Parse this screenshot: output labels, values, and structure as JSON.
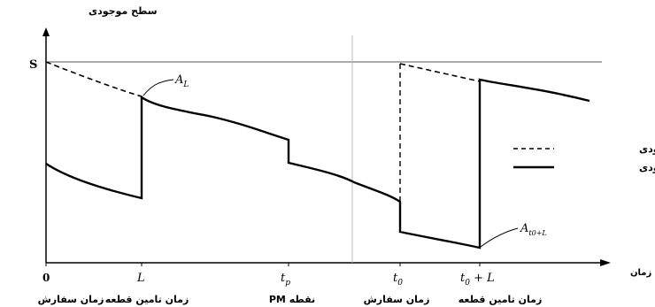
{
  "chart_data": {
    "type": "line",
    "ylabel": "سطح موجودی",
    "xlabel": "زمان",
    "y_tick": "S",
    "x_ticks": [
      {
        "label": "0",
        "italic": false,
        "sub": ""
      },
      {
        "label": "L",
        "italic": true,
        "sub": ""
      },
      {
        "label": "t",
        "italic": true,
        "sub": "p"
      },
      {
        "label": "t",
        "italic": true,
        "sub": "0"
      },
      {
        "label": "t",
        "italic": true,
        "sub": "0",
        "suffix": " + L"
      }
    ],
    "x_captions": [
      {
        "text": "زمان سفارش"
      },
      {
        "text": "زمان تامین قطعه"
      },
      {
        "text": "نقطه PM"
      },
      {
        "text": "زمان سفارش"
      },
      {
        "text": "زمان تامین قطعه"
      }
    ],
    "legend": [
      {
        "name": "موقعیت موجودی",
        "style": "dashed"
      },
      {
        "name": "سطح موجودی",
        "style": "solid"
      }
    ],
    "annotations": [
      {
        "text": "A",
        "sub": "L"
      },
      {
        "text": "A",
        "sub": "t0+L"
      }
    ],
    "series": [
      {
        "name": "موقعیت موجودی",
        "style": "dashed",
        "x": [
          0,
          1,
          2,
          3,
          4,
          5,
          6
        ],
        "y": [
          0.0,
          0.0,
          0.0,
          0.0,
          0.0,
          0.0,
          0.0
        ],
        "points": [
          [
            0,
            0.9
          ],
          [
            0.2,
            0.87
          ],
          [
            0.4,
            0.84
          ],
          [
            0.6,
            0.81
          ],
          [
            0.8,
            0.78
          ],
          [
            1.0,
            0.75
          ]
        ],
        "points2": [
          [
            3.6,
            0.9
          ],
          [
            3.9,
            0.88
          ],
          [
            4.2,
            0.86
          ],
          [
            4.45,
            0.84
          ]
        ]
      },
      {
        "name": "سطح موجودی",
        "style": "solid",
        "points": [
          [
            0,
            0.45
          ],
          [
            0.2,
            0.4
          ],
          [
            0.5,
            0.34
          ],
          [
            0.8,
            0.31
          ],
          [
            1.0,
            0.29
          ],
          [
            1.0,
            0.75
          ],
          [
            1.15,
            0.7
          ],
          [
            1.5,
            0.66
          ],
          [
            1.9,
            0.62
          ],
          [
            2.3,
            0.56
          ],
          [
            2.6,
            0.53
          ],
          [
            2.6,
            0.44
          ],
          [
            2.9,
            0.41
          ],
          [
            3.15,
            0.38
          ],
          [
            3.45,
            0.31
          ],
          [
            3.6,
            0.27
          ],
          [
            3.6,
            0.12
          ],
          [
            3.9,
            0.1
          ],
          [
            4.2,
            0.08
          ],
          [
            4.45,
            0.06
          ],
          [
            4.45,
            0.86
          ],
          [
            4.7,
            0.84
          ],
          [
            5.1,
            0.81
          ],
          [
            5.35,
            0.77
          ]
        ]
      }
    ],
    "axes": {
      "xlim": [
        0,
        5.8
      ],
      "ylim": [
        0,
        1.05
      ]
    }
  }
}
